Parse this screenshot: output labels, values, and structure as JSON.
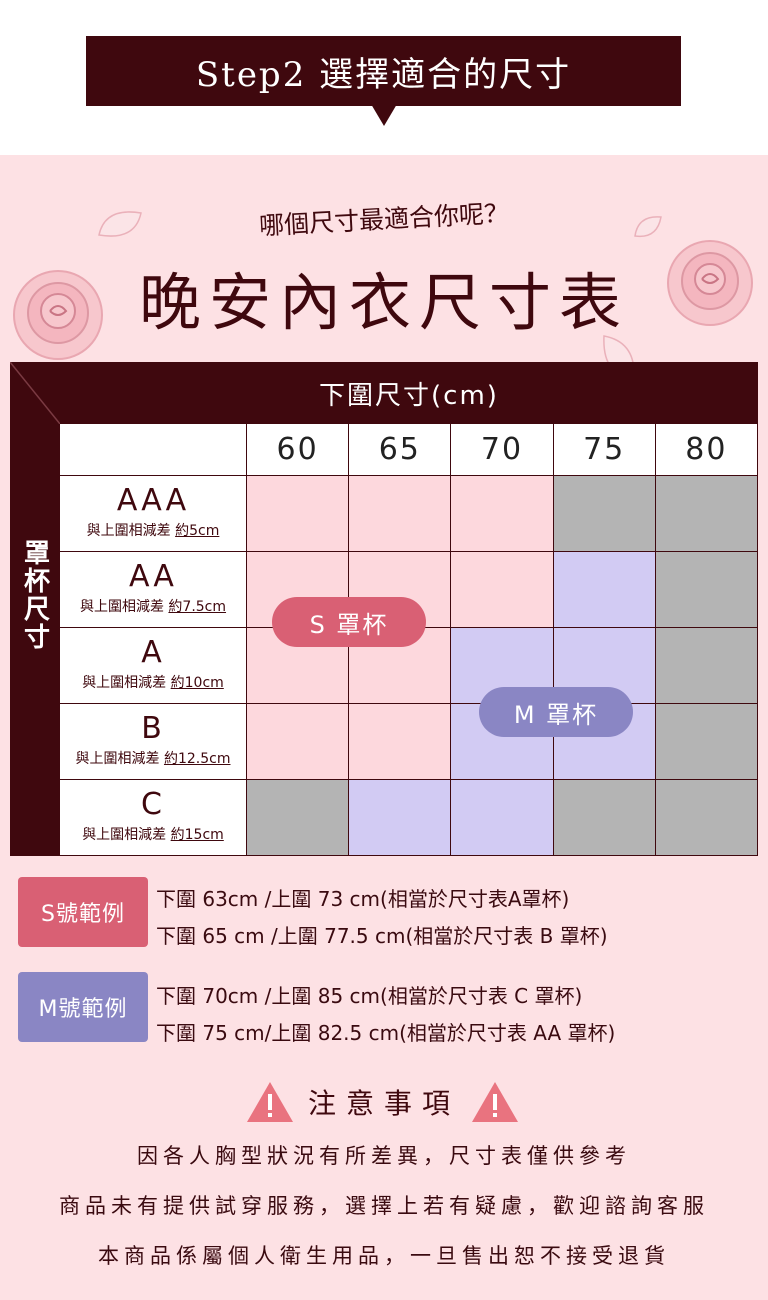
{
  "banner": {
    "title": "Step2 選擇適合的尺寸"
  },
  "hero": {
    "subtitle": "哪個尺寸最適合你呢？",
    "title": "晚安內衣尺寸表"
  },
  "table": {
    "under_bust_header": "下圍尺寸(cm)",
    "cup_header": "罩杯尺寸",
    "columns": [
      "60",
      "65",
      "70",
      "75",
      "80"
    ],
    "rows": [
      {
        "cup": "AAA",
        "note_prefix": "與上圍相減差 ",
        "note_value": "約5cm"
      },
      {
        "cup": "AA",
        "note_prefix": "與上圍相減差 ",
        "note_value": "約7.5cm"
      },
      {
        "cup": "A",
        "note_prefix": "與上圍相減差 ",
        "note_value": "約10cm"
      },
      {
        "cup": "B",
        "note_prefix": "與上圍相減差 ",
        "note_value": "約12.5cm"
      },
      {
        "cup": "C",
        "note_prefix": "與上圍相減差 ",
        "note_value": "約15cm"
      }
    ],
    "fills": [
      [
        "pink",
        "pink",
        "pink",
        "gray",
        "gray"
      ],
      [
        "pink",
        "pink",
        "pink",
        "purple",
        "gray"
      ],
      [
        "pink",
        "pink",
        "purple",
        "purple",
        "gray"
      ],
      [
        "pink",
        "pink",
        "purple",
        "purple",
        "gray"
      ],
      [
        "gray",
        "purple",
        "purple",
        "gray",
        "gray"
      ]
    ],
    "s_label": "S 罩杯",
    "m_label": "M 罩杯"
  },
  "examples": {
    "s_badge": "S號範例",
    "s_lines": [
      "下圍 63cm /上圍 73 cm(相當於尺寸表A罩杯)",
      "下圍 65 cm /上圍 77.5 cm(相當於尺寸表 B 罩杯)"
    ],
    "m_badge": "M號範例",
    "m_lines": [
      "下圍 70cm /上圍 85 cm(相當於尺寸表 C 罩杯)",
      "下圍 75 cm/上圍 82.5 cm(相當於尺寸表 AA 罩杯)"
    ]
  },
  "notice": {
    "title": "注意事項",
    "lines": [
      "因各人胸型狀況有所差異，尺寸表僅供參考",
      "商品未有提供試穿服務，選擇上若有疑慮，歡迎諮詢客服",
      "本商品係屬個人衛生用品，一旦售出恕不接受退貨"
    ]
  },
  "colors": {
    "dark": "#3f080e",
    "pink_fill": "#fdd8dd",
    "purple_fill": "#d2cbf3",
    "gray_fill": "#b4b4b4",
    "s_color": "#d96074",
    "m_color": "#8a86c4"
  },
  "icons": [
    "rose-icon",
    "petal-icon",
    "warning-icon"
  ]
}
